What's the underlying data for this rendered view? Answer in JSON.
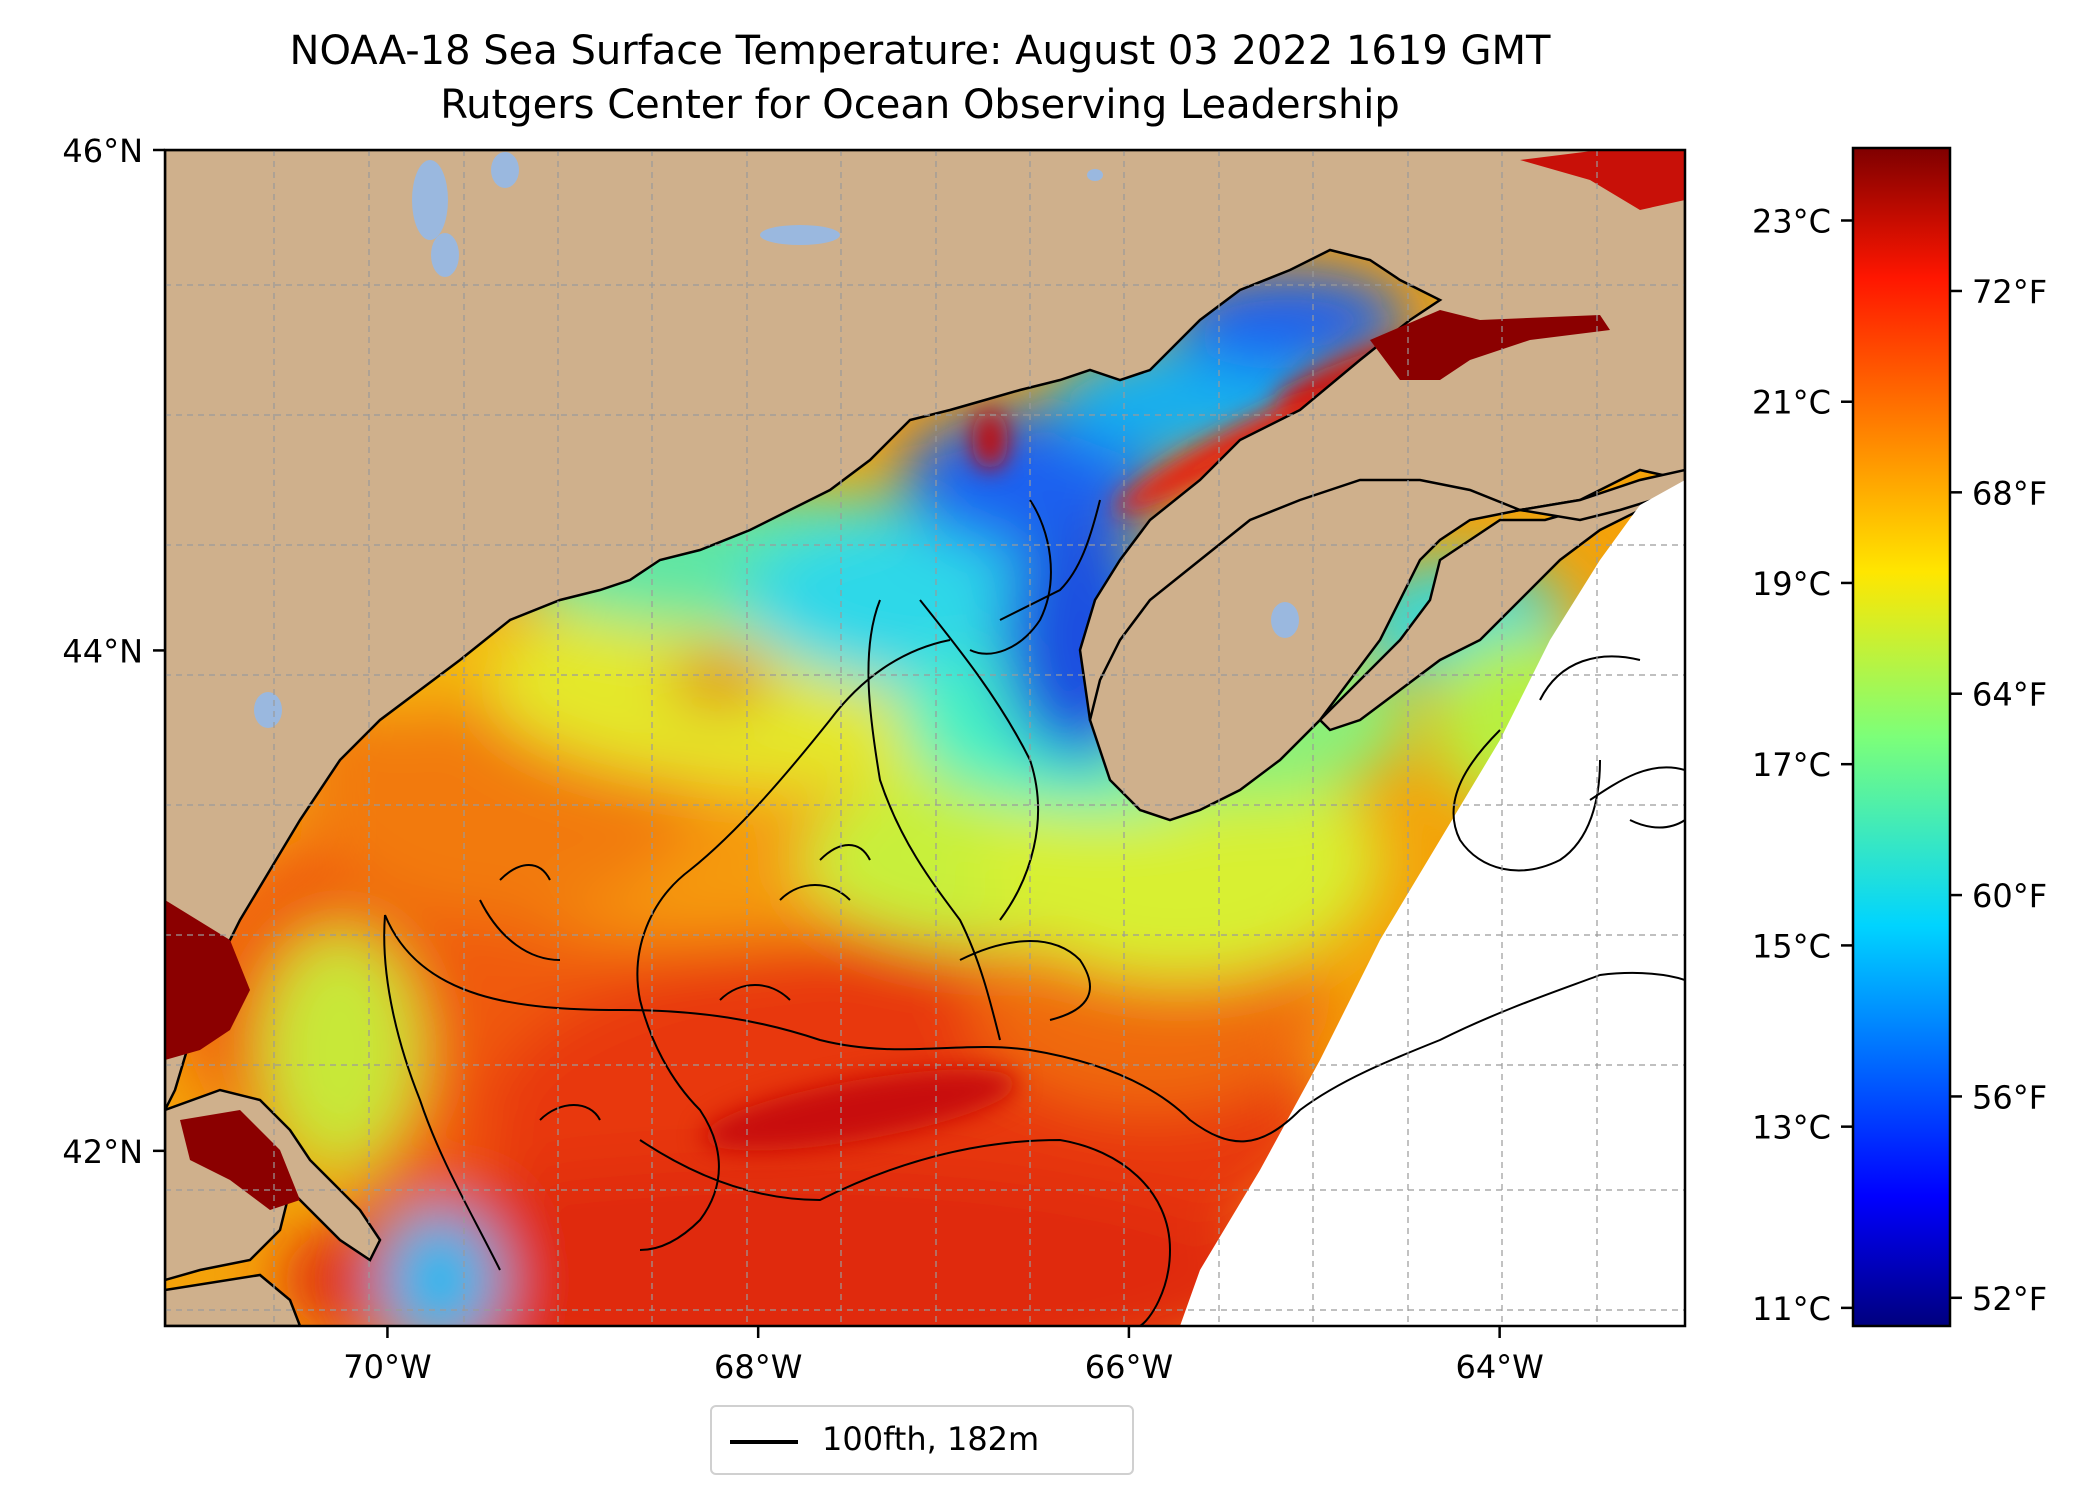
{
  "title": {
    "line1": "NOAA-18 Sea Surface Temperature: August 03 2022 1619 GMT",
    "line2": "Rutgers Center for Ocean Observing Leadership"
  },
  "map": {
    "lon_range": [
      -71.2,
      -63.0
    ],
    "lat_range": [
      41.3,
      46.0
    ],
    "lon_ticks": [
      {
        "value": -70,
        "label": "70°W"
      },
      {
        "value": -68,
        "label": "68°W"
      },
      {
        "value": -66,
        "label": "66°W"
      },
      {
        "value": -64,
        "label": "64°W"
      }
    ],
    "lat_ticks": [
      {
        "value": 46,
        "label": "46°N"
      },
      {
        "value": 44,
        "label": "44°N"
      },
      {
        "value": 42,
        "label": "42°N"
      }
    ],
    "grid": true,
    "land_color": "#cfb08c",
    "lake_color": "#9ab8df",
    "no_data_color": "#ffffff"
  },
  "colorbar": {
    "colormap": "jet",
    "celsius_range": [
      10.8,
      23.8
    ],
    "celsius_ticks": [
      {
        "value": 23,
        "label": "23°C"
      },
      {
        "value": 21,
        "label": "21°C"
      },
      {
        "value": 19,
        "label": "19°C"
      },
      {
        "value": 17,
        "label": "17°C"
      },
      {
        "value": 15,
        "label": "15°C"
      },
      {
        "value": 13,
        "label": "13°C"
      },
      {
        "value": 11,
        "label": "11°C"
      }
    ],
    "fahrenheit_ticks": [
      {
        "value": 72,
        "label": "72°F"
      },
      {
        "value": 68,
        "label": "68°F"
      },
      {
        "value": 64,
        "label": "64°F"
      },
      {
        "value": 60,
        "label": "60°F"
      },
      {
        "value": 56,
        "label": "56°F"
      },
      {
        "value": 52,
        "label": "52°F"
      }
    ]
  },
  "legend": {
    "label": "100fth, 182m",
    "location": "below-map"
  }
}
